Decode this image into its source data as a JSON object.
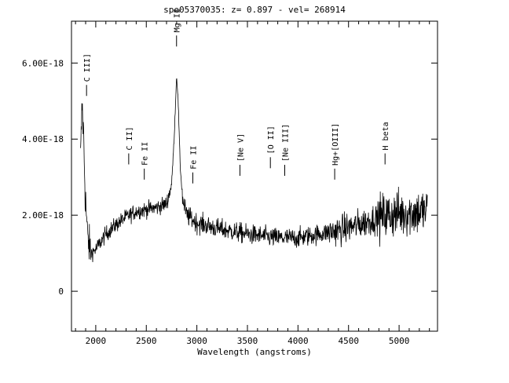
{
  "chart_data": {
    "type": "line",
    "title": "spe05370035: z= 0.897  -  vel= 268914",
    "xlabel": "Wavelength (angstroms)",
    "ylabel": "",
    "xlim": [
      1760,
      5380
    ],
    "ylim": [
      -1.05e-18,
      7.1e-18
    ],
    "x_ticks": [
      {
        "value": 2000,
        "label": "2000"
      },
      {
        "value": 2500,
        "label": "2500"
      },
      {
        "value": 3000,
        "label": "3000"
      },
      {
        "value": 3500,
        "label": "3500"
      },
      {
        "value": 4000,
        "label": "4000"
      },
      {
        "value": 4500,
        "label": "4500"
      },
      {
        "value": 5000,
        "label": "5000"
      }
    ],
    "y_ticks": [
      {
        "value": 0,
        "label": "0"
      },
      {
        "value": 2e-18,
        "label": "2.00E-18"
      },
      {
        "value": 4e-18,
        "label": "4.00E-18"
      },
      {
        "value": 6e-18,
        "label": "6.00E-18"
      }
    ],
    "grid": false,
    "legend": "none",
    "line_color": "#000000",
    "spectrum_range": [
      1850,
      5280
    ],
    "spectrum_keypoints": [
      [
        1850,
        3.5e-18
      ],
      [
        1865,
        4.9e-18
      ],
      [
        1880,
        4.1e-18
      ],
      [
        1895,
        2.6e-18
      ],
      [
        1920,
        1.4e-18
      ],
      [
        1950,
        1e-18
      ],
      [
        2000,
        1.1e-18
      ],
      [
        2050,
        1.3e-18
      ],
      [
        2100,
        1.5e-18
      ],
      [
        2200,
        1.75e-18
      ],
      [
        2300,
        1.95e-18
      ],
      [
        2400,
        2.1e-18
      ],
      [
        2500,
        2.15e-18
      ],
      [
        2600,
        2.2e-18
      ],
      [
        2700,
        2.3e-18
      ],
      [
        2750,
        2.8e-18
      ],
      [
        2775,
        4e-18
      ],
      [
        2800,
        5.7e-18
      ],
      [
        2815,
        5e-18
      ],
      [
        2835,
        3.3e-18
      ],
      [
        2860,
        2.4e-18
      ],
      [
        2900,
        2e-18
      ],
      [
        3000,
        1.8e-18
      ],
      [
        3200,
        1.65e-18
      ],
      [
        3500,
        1.5e-18
      ],
      [
        3800,
        1.4e-18
      ],
      [
        4000,
        1.4e-18
      ],
      [
        4200,
        1.5e-18
      ],
      [
        4400,
        1.6e-18
      ],
      [
        4600,
        1.75e-18
      ],
      [
        4800,
        1.95e-18
      ],
      [
        5000,
        2.05e-18
      ],
      [
        5280,
        2.1e-18
      ]
    ],
    "line_annotations": [
      {
        "label": "C III]",
        "x": 1909,
        "y_top": 5.3e-18
      },
      {
        "label": "C II]",
        "x": 2326,
        "y_top": 3.5e-18
      },
      {
        "label": "Fe II",
        "x": 2480,
        "y_top": 3.1e-18
      },
      {
        "label": "Mg II",
        "x": 2799,
        "y_top": 6.6e-18
      },
      {
        "label": "Fe II",
        "x": 2960,
        "y_top": 3e-18
      },
      {
        "label": "[Ne V]",
        "x": 3426,
        "y_top": 3.2e-18
      },
      {
        "label": "[O II]",
        "x": 3727,
        "y_top": 3.4e-18
      },
      {
        "label": "[Ne III]",
        "x": 3869,
        "y_top": 3.2e-18
      },
      {
        "label": "Hg+[OIII]",
        "x": 4363,
        "y_top": 3.1e-18
      },
      {
        "label": "H beta",
        "x": 4861,
        "y_top": 3.5e-18
      }
    ]
  }
}
